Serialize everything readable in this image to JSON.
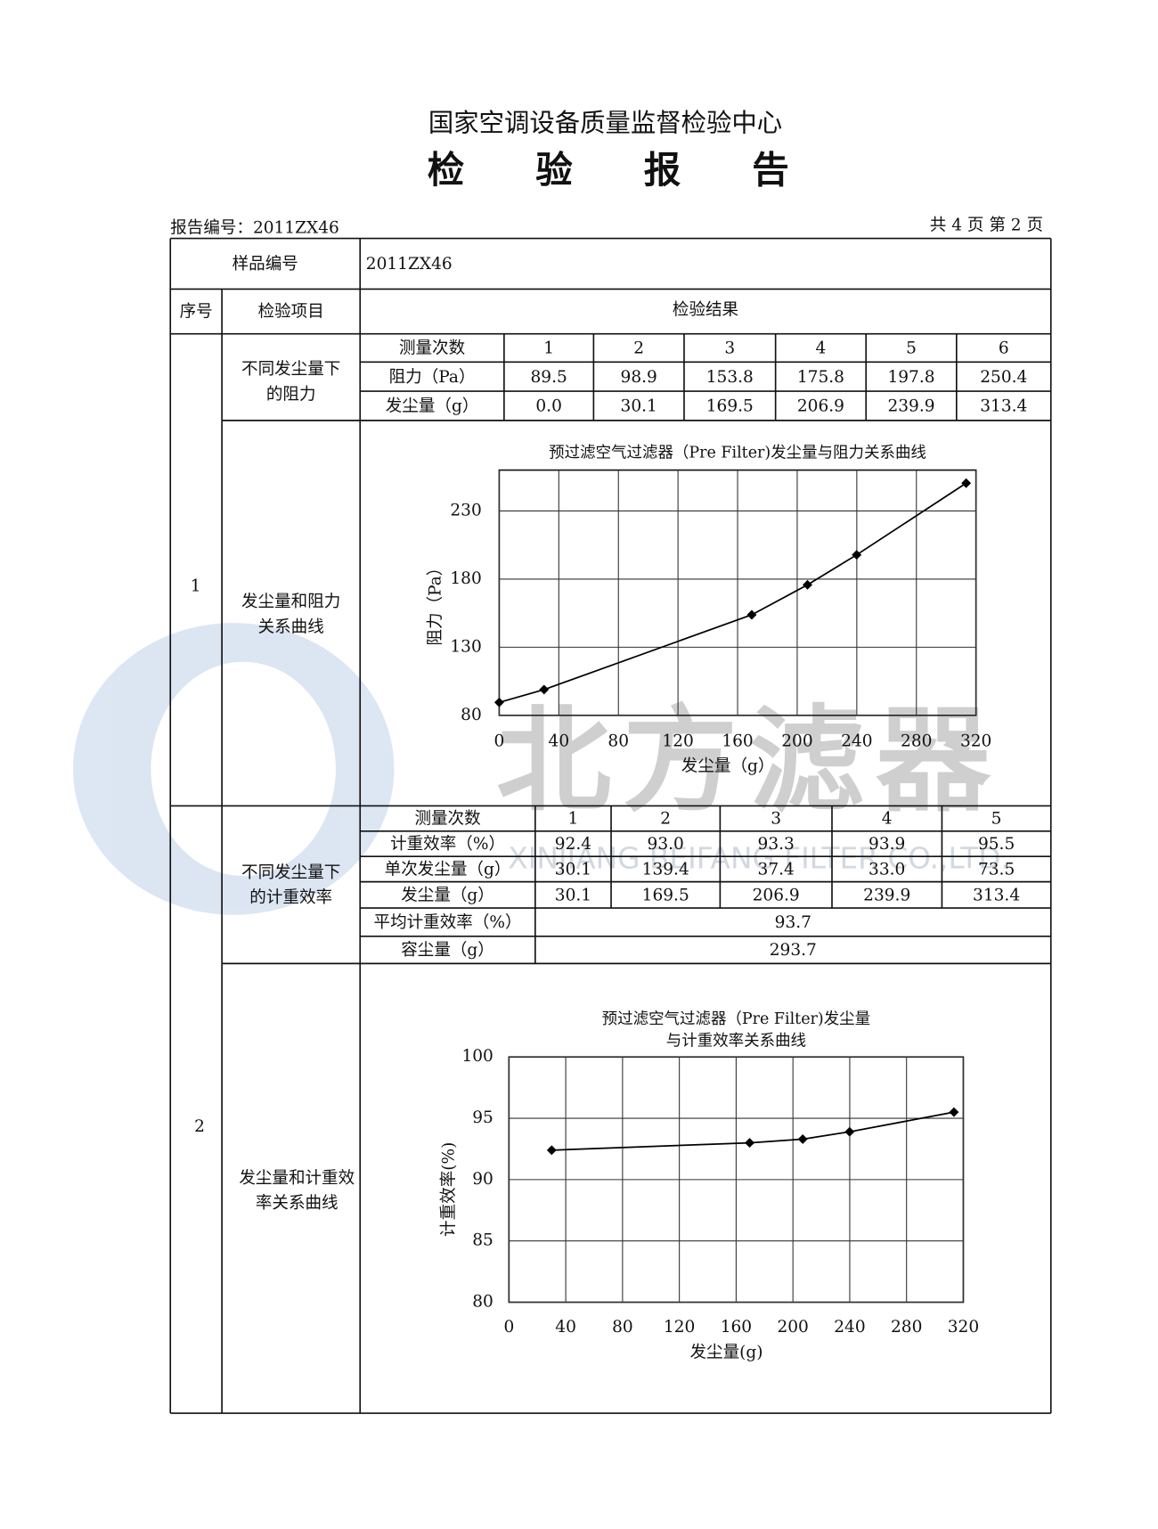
{
  "header": {
    "org": "国家空调设备质量监督检验中心",
    "title": "检 验 报 告",
    "report_no": "报告编号：2011ZX46",
    "page": "共 4 页 第 2 页"
  },
  "table": {
    "sample_label": "样品编号",
    "sample_no": "2011ZX46",
    "col_headers": [
      "序号",
      "检验项目",
      "检验结果"
    ],
    "sections": [
      {
        "index": "1",
        "items": [
          [
            "不同发尘量下",
            "的阻力"
          ],
          [
            "发尘量和阻力",
            "关系曲线"
          ]
        ]
      },
      {
        "index": "2",
        "items": [
          [
            "不同发尘量下",
            "的计重效率"
          ],
          [
            "发尘量和计重效",
            "率关系曲线"
          ]
        ]
      }
    ]
  },
  "resistance_table": {
    "rows": [
      [
        "测量次数",
        "1",
        "2",
        "3",
        "4",
        "5",
        "6"
      ],
      [
        "阻力（Pa）",
        "89.5",
        "98.9",
        "153.8",
        "175.8",
        "197.8",
        "250.4"
      ],
      [
        "发尘量（g）",
        "0.0",
        "30.1",
        "169.5",
        "206.9",
        "239.9",
        "313.4"
      ]
    ]
  },
  "efficiency_table": {
    "rows": [
      [
        "测量次数",
        "1",
        "2",
        "3",
        "4",
        "5"
      ],
      [
        "计重效率（%）",
        "92.4",
        "93.0",
        "93.3",
        "93.9",
        "95.5"
      ],
      [
        "单次发尘量（g）",
        "30.1",
        "139.4",
        "37.4",
        "33.0",
        "73.5"
      ],
      [
        "发尘量（g）",
        "30.1",
        "169.5",
        "206.9",
        "239.9",
        "313.4"
      ],
      [
        "平均计重效率（%）",
        "93.7"
      ],
      [
        "容尘量（g）",
        "293.7"
      ]
    ]
  },
  "watermark": {
    "name": "北方滤器",
    "company": "XINJIANG BEIFANG FILTER CO.,LTD."
  },
  "chart_data": [
    {
      "type": "line",
      "title": [
        "预过滤空气过滤器（Pre Filter)发尘量与阻力关系曲线"
      ],
      "x_label": "发尘量（g）",
      "y_label": "阻力（Pa）",
      "x": [
        0,
        30.1,
        169.5,
        206.9,
        239.9,
        313.4
      ],
      "series": [
        {
          "color": "#000000",
          "values": [
            89.5,
            98.9,
            153.8,
            175.8,
            197.8,
            250.4
          ]
        }
      ],
      "xlim": [
        0,
        320
      ],
      "xticks": [
        0,
        40,
        80,
        120,
        160,
        200,
        240,
        280,
        320
      ],
      "ylim": [
        80,
        260
      ],
      "yticks": [
        80,
        130,
        180,
        230
      ],
      "grid": true
    },
    {
      "type": "line",
      "title": [
        "预过滤空气过滤器（Pre Filter)发尘量",
        "与计重效率关系曲线"
      ],
      "x_label": "发尘量(g)",
      "y_label": "计重效率(%)",
      "x": [
        30.1,
        169.5,
        206.9,
        239.9,
        313.4
      ],
      "series": [
        {
          "color": "#000000",
          "values": [
            92.4,
            93.0,
            93.3,
            93.9,
            95.5
          ]
        }
      ],
      "xlim": [
        0,
        320
      ],
      "xticks": [
        0,
        40,
        80,
        120,
        160,
        200,
        240,
        280,
        320
      ],
      "ylim": [
        80,
        100
      ],
      "yticks": [
        80,
        85,
        90,
        95,
        100
      ],
      "grid": true
    }
  ]
}
